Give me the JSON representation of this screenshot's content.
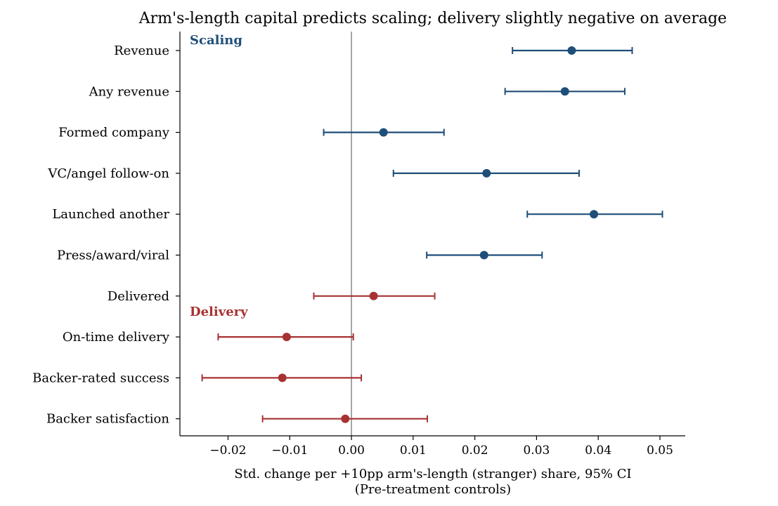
{
  "chart_data": {
    "type": "forest",
    "title": "Arm's-length capital predicts scaling; delivery slightly negative on average",
    "xlabel": "Std. change per +10pp arm's-length (stranger) share, 95% CI",
    "xlabel_sub": "(Pre-treatment controls)",
    "xlim": [
      -0.0278,
      0.0541
    ],
    "xticks": [
      -0.02,
      -0.01,
      0.0,
      0.01,
      0.02,
      0.03,
      0.04,
      0.05
    ],
    "xtick_labels": [
      "−0.02",
      "−0.01",
      "0.00",
      "0.01",
      "0.02",
      "0.03",
      "0.04",
      "0.05"
    ],
    "reference_line": 0,
    "groups": [
      {
        "label": "Scaling",
        "color": "#1f4e79"
      },
      {
        "label": "Delivery",
        "color": "#a83232"
      }
    ],
    "series": [
      {
        "label": "Revenue",
        "group": 0,
        "estimate": 0.0357,
        "ci_low": 0.0261,
        "ci_high": 0.0455
      },
      {
        "label": "Any revenue",
        "group": 0,
        "estimate": 0.0346,
        "ci_low": 0.0249,
        "ci_high": 0.0443
      },
      {
        "label": "Formed company",
        "group": 0,
        "estimate": 0.0052,
        "ci_low": -0.0045,
        "ci_high": 0.015
      },
      {
        "label": "VC/angel follow-on",
        "group": 0,
        "estimate": 0.0219,
        "ci_low": 0.0068,
        "ci_high": 0.0369
      },
      {
        "label": "Launched another",
        "group": 0,
        "estimate": 0.0393,
        "ci_low": 0.0285,
        "ci_high": 0.0504
      },
      {
        "label": "Press/award/viral",
        "group": 0,
        "estimate": 0.0215,
        "ci_low": 0.0122,
        "ci_high": 0.0309
      },
      {
        "label": "Delivered",
        "group": 1,
        "estimate": 0.0036,
        "ci_low": -0.0061,
        "ci_high": 0.0135
      },
      {
        "label": "On-time delivery",
        "group": 1,
        "estimate": -0.0105,
        "ci_low": -0.0216,
        "ci_high": 0.0003
      },
      {
        "label": "Backer-rated success",
        "group": 1,
        "estimate": -0.0112,
        "ci_low": -0.0242,
        "ci_high": 0.0016
      },
      {
        "label": "Backer satisfaction",
        "group": 1,
        "estimate": -0.001,
        "ci_low": -0.0144,
        "ci_high": 0.0123
      }
    ],
    "grid": false,
    "legend": "none"
  }
}
